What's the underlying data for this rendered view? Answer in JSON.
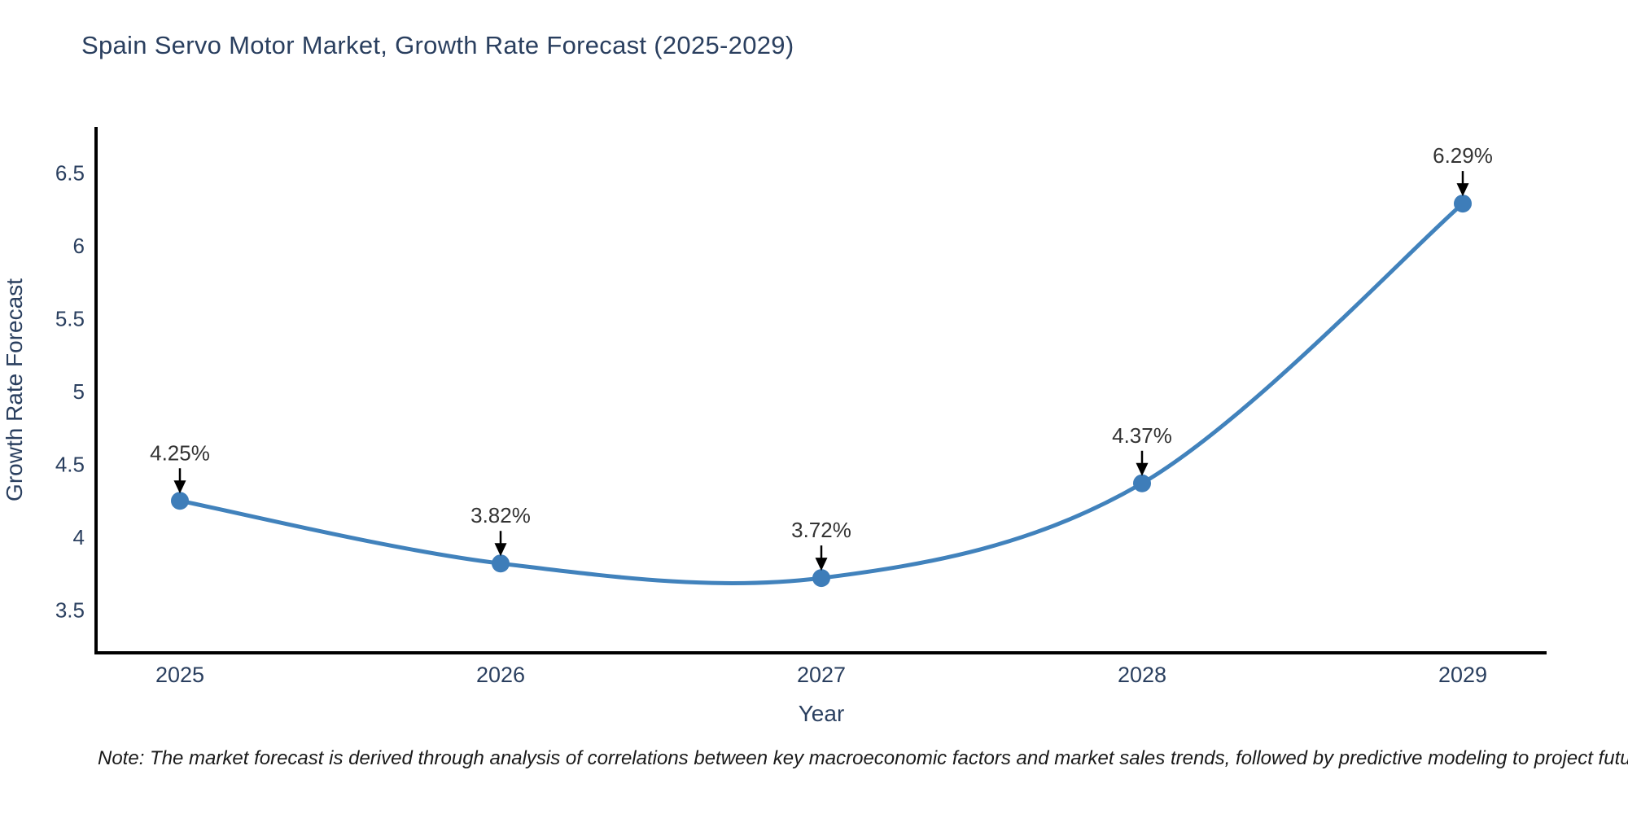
{
  "title": "Spain Servo Motor Market, Growth Rate Forecast (2025-2029)",
  "note": "Note: The market forecast is derived through analysis of correlations between key macroeconomic factors and market sales trends, followed by predictive modeling to project future sales.",
  "colors": {
    "background": "#ffffff",
    "line": "#4182bc",
    "marker": "#3e7db9",
    "title_text": "#2a3f5f",
    "axis_text": "#2a3f5f",
    "axis_line": "#000000",
    "annotation_text": "#333333",
    "annotation_arrow": "#000000",
    "note_text": "#1a1a1a"
  },
  "chart_data": {
    "type": "line",
    "title": "Spain Servo Motor Market, Growth Rate Forecast (2025-2029)",
    "xlabel": "Year",
    "ylabel": "Growth Rate Forecast",
    "categories": [
      "2025",
      "2026",
      "2027",
      "2028",
      "2029"
    ],
    "values": [
      4.25,
      3.82,
      3.72,
      4.37,
      6.29
    ],
    "point_labels": [
      "4.25%",
      "3.82%",
      "3.72%",
      "4.37%",
      "6.29%"
    ],
    "yticks": [
      6.5,
      6,
      5.5,
      5,
      4.5,
      4,
      3.5
    ],
    "ytick_labels": [
      "6.5",
      "6",
      "5.5",
      "5",
      "4.5",
      "4",
      "3.5"
    ],
    "ylim": [
      3.19,
      6.8
    ],
    "line_shape": "spline",
    "grid": false,
    "legend": false,
    "annotations": "arrow-down-to-point"
  }
}
